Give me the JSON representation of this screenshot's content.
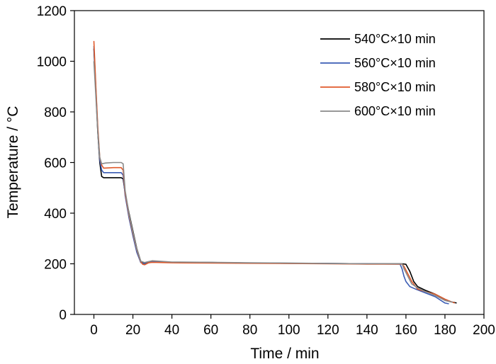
{
  "chart_data": {
    "type": "line",
    "title": "",
    "xlabel": "Time / min",
    "ylabel": "Temperature / °C",
    "xlim": [
      -10,
      200
    ],
    "ylim": [
      0,
      1200
    ],
    "x_ticks": [
      0,
      20,
      40,
      60,
      80,
      100,
      120,
      140,
      160,
      180,
      200
    ],
    "y_ticks": [
      0,
      200,
      400,
      600,
      800,
      1000,
      1200
    ],
    "grid": false,
    "legend_position": "top-right",
    "series": [
      {
        "name": "540°C×10 min",
        "color": "#000000",
        "points": [
          [
            0,
            1050
          ],
          [
            1,
            880
          ],
          [
            2,
            720
          ],
          [
            3,
            600
          ],
          [
            4,
            545
          ],
          [
            5,
            540
          ],
          [
            10,
            540
          ],
          [
            14,
            540
          ],
          [
            15,
            535
          ],
          [
            16,
            480
          ],
          [
            18,
            400
          ],
          [
            20,
            330
          ],
          [
            22,
            260
          ],
          [
            24,
            210
          ],
          [
            26,
            202
          ],
          [
            30,
            210
          ],
          [
            40,
            206
          ],
          [
            60,
            205
          ],
          [
            80,
            203
          ],
          [
            100,
            202
          ],
          [
            120,
            201
          ],
          [
            140,
            200
          ],
          [
            158,
            200
          ],
          [
            160,
            198
          ],
          [
            162,
            170
          ],
          [
            164,
            130
          ],
          [
            166,
            110
          ],
          [
            170,
            95
          ],
          [
            175,
            80
          ],
          [
            180,
            60
          ],
          [
            183,
            50
          ],
          [
            186,
            45
          ]
        ]
      },
      {
        "name": "560°C×10 min",
        "color": "#3a5cb4",
        "points": [
          [
            0,
            1060
          ],
          [
            1,
            890
          ],
          [
            2,
            730
          ],
          [
            3,
            610
          ],
          [
            4,
            570
          ],
          [
            5,
            560
          ],
          [
            10,
            560
          ],
          [
            14,
            560
          ],
          [
            15,
            550
          ],
          [
            16,
            470
          ],
          [
            18,
            380
          ],
          [
            20,
            310
          ],
          [
            22,
            245
          ],
          [
            24,
            205
          ],
          [
            26,
            200
          ],
          [
            30,
            208
          ],
          [
            40,
            206
          ],
          [
            60,
            205
          ],
          [
            80,
            203
          ],
          [
            100,
            202
          ],
          [
            120,
            201
          ],
          [
            140,
            200
          ],
          [
            157,
            199
          ],
          [
            158,
            180
          ],
          [
            159,
            150
          ],
          [
            160,
            130
          ],
          [
            162,
            110
          ],
          [
            165,
            100
          ],
          [
            170,
            85
          ],
          [
            175,
            70
          ],
          [
            180,
            45
          ],
          [
            182,
            42
          ]
        ]
      },
      {
        "name": "580°C×10 min",
        "color": "#e05a2b",
        "points": [
          [
            0,
            1080
          ],
          [
            1,
            900
          ],
          [
            2,
            740
          ],
          [
            3,
            620
          ],
          [
            4,
            590
          ],
          [
            5,
            578
          ],
          [
            10,
            580
          ],
          [
            14,
            580
          ],
          [
            15,
            570
          ],
          [
            16,
            480
          ],
          [
            18,
            390
          ],
          [
            20,
            320
          ],
          [
            22,
            255
          ],
          [
            24,
            208
          ],
          [
            25,
            198
          ],
          [
            26,
            196
          ],
          [
            28,
            204
          ],
          [
            30,
            206
          ],
          [
            40,
            204
          ],
          [
            60,
            203
          ],
          [
            80,
            202
          ],
          [
            100,
            201
          ],
          [
            120,
            200
          ],
          [
            140,
            199
          ],
          [
            158,
            199
          ],
          [
            159,
            190
          ],
          [
            161,
            160
          ],
          [
            163,
            130
          ],
          [
            166,
            100
          ],
          [
            170,
            90
          ],
          [
            175,
            80
          ],
          [
            180,
            60
          ],
          [
            185,
            45
          ]
        ]
      },
      {
        "name": "600°C×10 min",
        "color": "#8a8a8a",
        "points": [
          [
            0,
            1000
          ],
          [
            1,
            860
          ],
          [
            2,
            720
          ],
          [
            3,
            620
          ],
          [
            4,
            595
          ],
          [
            6,
            598
          ],
          [
            10,
            600
          ],
          [
            14,
            600
          ],
          [
            15,
            595
          ],
          [
            16,
            490
          ],
          [
            18,
            395
          ],
          [
            20,
            325
          ],
          [
            22,
            258
          ],
          [
            24,
            210
          ],
          [
            26,
            205
          ],
          [
            30,
            212
          ],
          [
            40,
            207
          ],
          [
            60,
            206
          ],
          [
            80,
            204
          ],
          [
            100,
            203
          ],
          [
            120,
            201
          ],
          [
            140,
            200
          ],
          [
            158,
            200
          ],
          [
            159,
            180
          ],
          [
            161,
            150
          ],
          [
            163,
            120
          ],
          [
            166,
            105
          ],
          [
            170,
            90
          ],
          [
            175,
            75
          ],
          [
            180,
            55
          ],
          [
            184,
            48
          ]
        ]
      }
    ]
  }
}
